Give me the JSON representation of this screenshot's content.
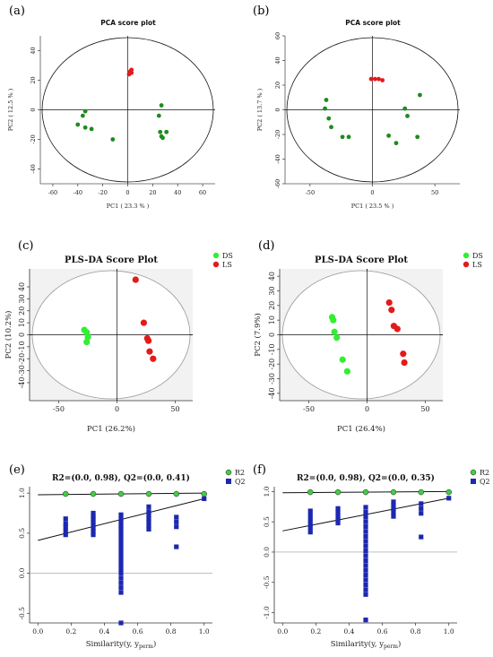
{
  "chart_data": [
    {
      "panel": "(a)",
      "type": "scatter",
      "title": "PCA score plot",
      "xlabel": "PC1 ( 23.3 % )",
      "ylabel": "PC2 ( 12.5 % )",
      "xlim": [
        -70,
        70
      ],
      "ylim": [
        -50,
        50
      ],
      "xticks": [
        -60,
        -40,
        -20,
        0,
        20,
        40,
        60
      ],
      "yticks": [
        -40,
        -20,
        0,
        20,
        40
      ],
      "ellipse": true,
      "series": [
        {
          "color": "#1f8a1f",
          "points": [
            [
              -40,
              -10
            ],
            [
              -36,
              -4
            ],
            [
              -34,
              -1
            ],
            [
              -34,
              -12
            ],
            [
              -29,
              -13
            ],
            [
              -12,
              -20
            ],
            [
              25,
              -4
            ],
            [
              27,
              3
            ],
            [
              26,
              -15
            ],
            [
              28,
              -19
            ],
            [
              31,
              -15
            ],
            [
              27,
              -18
            ]
          ]
        },
        {
          "color": "#e41a1a",
          "points": [
            [
              1,
              24
            ],
            [
              2,
              26
            ],
            [
              3,
              27
            ],
            [
              3,
              25
            ]
          ]
        }
      ]
    },
    {
      "panel": "(b)",
      "type": "scatter",
      "title": "PCA score plot",
      "xlabel": "PC1 ( 23.5 % )",
      "ylabel": "PC2 ( 13.7 % )",
      "xlim": [
        -70,
        70
      ],
      "ylim": [
        -60,
        60
      ],
      "xticks": [
        -50,
        0,
        50
      ],
      "yticks": [
        -60,
        -40,
        -20,
        0,
        20,
        40,
        60
      ],
      "ellipse": true,
      "series": [
        {
          "color": "#1f8a1f",
          "points": [
            [
              -37,
              8
            ],
            [
              -38,
              1
            ],
            [
              -35,
              -7
            ],
            [
              -33,
              -14
            ],
            [
              -24,
              -22
            ],
            [
              -19,
              -22
            ],
            [
              13,
              -21
            ],
            [
              19,
              -27
            ],
            [
              26,
              1
            ],
            [
              28,
              -5
            ],
            [
              38,
              12
            ],
            [
              36,
              -22
            ]
          ]
        },
        {
          "color": "#e41a1a",
          "points": [
            [
              -1,
              25
            ],
            [
              2,
              25
            ],
            [
              5,
              25
            ],
            [
              8,
              24
            ]
          ]
        }
      ]
    },
    {
      "panel": "(c)",
      "type": "scatter",
      "title": "PLS-DA Score Plot",
      "xlabel": "PC1 (26.2%)",
      "ylabel": "PC2 (10.2%)",
      "xlim": [
        -75,
        65
      ],
      "ylim": [
        -55,
        55
      ],
      "xticks": [
        -50,
        0,
        50
      ],
      "yticks": [
        -40,
        -30,
        -20,
        -10,
        0,
        10,
        20,
        30,
        40
      ],
      "legend": {
        "position": "top-right",
        "entries": [
          {
            "name": "DS",
            "color": "#33ee33"
          },
          {
            "name": "LS",
            "color": "#e41a1a"
          }
        ]
      },
      "series": [
        {
          "name": "DS",
          "color": "#33ee33",
          "points": [
            [
              -28,
              4
            ],
            [
              -26,
              2
            ],
            [
              -25,
              -2
            ],
            [
              -26,
              -6
            ]
          ]
        },
        {
          "name": "LS",
          "color": "#e41a1a",
          "points": [
            [
              16,
              46
            ],
            [
              23,
              10
            ],
            [
              26,
              -3
            ],
            [
              27,
              -5
            ],
            [
              28,
              -14
            ],
            [
              31,
              -20
            ]
          ]
        }
      ]
    },
    {
      "panel": "(d)",
      "type": "scatter",
      "title": "PLS-DA Score Plot",
      "xlabel": "PC1 (26.4%)",
      "ylabel": "PC2 (7.9%)",
      "xlim": [
        -75,
        65
      ],
      "ylim": [
        -45,
        45
      ],
      "xticks": [
        -50,
        0,
        50
      ],
      "yticks": [
        -40,
        -30,
        -20,
        -10,
        0,
        10,
        20,
        30,
        40
      ],
      "legend": {
        "position": "top-right",
        "entries": [
          {
            "name": "DS",
            "color": "#33ee33"
          },
          {
            "name": "LS",
            "color": "#e41a1a"
          }
        ]
      },
      "series": [
        {
          "name": "DS",
          "color": "#33ee33",
          "points": [
            [
              -30,
              12
            ],
            [
              -29,
              10
            ],
            [
              -28,
              2
            ],
            [
              -26,
              -2
            ],
            [
              -21,
              -17
            ],
            [
              -17,
              -25
            ]
          ]
        },
        {
          "name": "LS",
          "color": "#e41a1a",
          "points": [
            [
              19,
              22
            ],
            [
              21,
              17
            ],
            [
              23,
              6
            ],
            [
              26,
              4
            ],
            [
              31,
              -13
            ],
            [
              32,
              -19
            ]
          ]
        }
      ]
    },
    {
      "panel": "(e)",
      "type": "scatter",
      "title": "R2=(0.0, 0.98), Q2=(0.0, 0.41)",
      "xlabel": "Similarity(y, y",
      "xlabel_sub": "perm",
      "xlabel_end": ")",
      "xlim": [
        -0.05,
        1.05
      ],
      "ylim": [
        -0.62,
        1.08
      ],
      "xticks": [
        0.0,
        0.2,
        0.4,
        0.6,
        0.8,
        1.0
      ],
      "yticks": [
        -0.5,
        0.0,
        0.5,
        1.0
      ],
      "legend": {
        "position": "top-right",
        "entries": [
          {
            "name": "R2",
            "color": "#44cc44"
          },
          {
            "name": "Q2",
            "color": "#1c28b0"
          }
        ]
      },
      "lines": [
        {
          "name": "R2",
          "x": [
            0,
            1
          ],
          "y": [
            0.98,
            1.0
          ]
        },
        {
          "name": "Q2",
          "x": [
            0,
            1
          ],
          "y": [
            0.41,
            0.93
          ]
        }
      ],
      "series": [
        {
          "name": "R2",
          "shape": "circle",
          "color": "#44cc44",
          "points": [
            [
              0.167,
              0.99
            ],
            [
              0.333,
              0.99
            ],
            [
              0.5,
              0.99
            ],
            [
              0.667,
              0.99
            ],
            [
              0.833,
              0.99
            ],
            [
              1.0,
              0.99
            ]
          ]
        },
        {
          "name": "Q2",
          "shape": "square",
          "color": "#1c28b0",
          "points": [
            [
              0.167,
              0.68
            ],
            [
              0.167,
              0.62
            ],
            [
              0.167,
              0.58
            ],
            [
              0.167,
              0.53
            ],
            [
              0.167,
              0.48
            ],
            [
              0.333,
              0.75
            ],
            [
              0.333,
              0.71
            ],
            [
              0.333,
              0.68
            ],
            [
              0.333,
              0.64
            ],
            [
              0.333,
              0.6
            ],
            [
              0.333,
              0.56
            ],
            [
              0.333,
              0.52
            ],
            [
              0.333,
              0.48
            ],
            [
              0.5,
              0.73
            ],
            [
              0.5,
              0.68
            ],
            [
              0.5,
              0.64
            ],
            [
              0.5,
              0.59
            ],
            [
              0.5,
              0.55
            ],
            [
              0.5,
              0.5
            ],
            [
              0.5,
              0.45
            ],
            [
              0.5,
              0.4
            ],
            [
              0.5,
              0.35
            ],
            [
              0.5,
              0.3
            ],
            [
              0.5,
              0.25
            ],
            [
              0.5,
              0.2
            ],
            [
              0.5,
              0.15
            ],
            [
              0.5,
              0.1
            ],
            [
              0.5,
              0.05
            ],
            [
              0.5,
              0.0
            ],
            [
              0.5,
              -0.06
            ],
            [
              0.5,
              -0.12
            ],
            [
              0.5,
              -0.18
            ],
            [
              0.5,
              -0.24
            ],
            [
              0.5,
              -0.62
            ],
            [
              0.667,
              0.83
            ],
            [
              0.667,
              0.77
            ],
            [
              0.667,
              0.73
            ],
            [
              0.667,
              0.68
            ],
            [
              0.667,
              0.64
            ],
            [
              0.667,
              0.59
            ],
            [
              0.667,
              0.55
            ],
            [
              0.833,
              0.7
            ],
            [
              0.833,
              0.64
            ],
            [
              0.833,
              0.58
            ],
            [
              0.833,
              0.33
            ],
            [
              1.0,
              0.93
            ]
          ]
        }
      ]
    },
    {
      "panel": "(f)",
      "type": "scatter",
      "title": "R2=(0.0, 0.98), Q2=(0.0, 0.35)",
      "xlabel": "Similarity(y, y",
      "xlabel_sub": "perm",
      "xlabel_end": ")",
      "xlim": [
        -0.05,
        1.05
      ],
      "ylim": [
        -1.17,
        1.08
      ],
      "xticks": [
        0.0,
        0.2,
        0.4,
        0.6,
        0.8,
        1.0
      ],
      "yticks": [
        -1.0,
        -0.5,
        0.0,
        0.5,
        1.0
      ],
      "legend": {
        "position": "top-right",
        "entries": [
          {
            "name": "R2",
            "color": "#44cc44"
          },
          {
            "name": "Q2",
            "color": "#1c28b0"
          }
        ]
      },
      "lines": [
        {
          "name": "R2",
          "x": [
            0,
            1
          ],
          "y": [
            0.98,
            1.0
          ]
        },
        {
          "name": "Q2",
          "x": [
            0,
            1
          ],
          "y": [
            0.35,
            0.89
          ]
        }
      ],
      "series": [
        {
          "name": "R2",
          "shape": "circle",
          "color": "#44cc44",
          "points": [
            [
              0.167,
              0.99
            ],
            [
              0.333,
              0.99
            ],
            [
              0.5,
              0.99
            ],
            [
              0.667,
              0.99
            ],
            [
              0.833,
              0.99
            ],
            [
              1.0,
              0.99
            ]
          ]
        },
        {
          "name": "Q2",
          "shape": "square",
          "color": "#1c28b0",
          "points": [
            [
              0.167,
              0.68
            ],
            [
              0.167,
              0.61
            ],
            [
              0.167,
              0.54
            ],
            [
              0.167,
              0.47
            ],
            [
              0.167,
              0.4
            ],
            [
              0.167,
              0.33
            ],
            [
              0.333,
              0.72
            ],
            [
              0.333,
              0.66
            ],
            [
              0.333,
              0.6
            ],
            [
              0.333,
              0.54
            ],
            [
              0.333,
              0.48
            ],
            [
              0.5,
              0.74
            ],
            [
              0.5,
              0.66
            ],
            [
              0.5,
              0.58
            ],
            [
              0.5,
              0.5
            ],
            [
              0.5,
              0.42
            ],
            [
              0.5,
              0.34
            ],
            [
              0.5,
              0.26
            ],
            [
              0.5,
              0.18
            ],
            [
              0.5,
              0.1
            ],
            [
              0.5,
              0.02
            ],
            [
              0.5,
              -0.06
            ],
            [
              0.5,
              -0.14
            ],
            [
              0.5,
              -0.22
            ],
            [
              0.5,
              -0.3
            ],
            [
              0.5,
              -0.38
            ],
            [
              0.5,
              -0.46
            ],
            [
              0.5,
              -0.54
            ],
            [
              0.5,
              -0.62
            ],
            [
              0.5,
              -0.7
            ],
            [
              0.5,
              -1.12
            ],
            [
              0.667,
              0.83
            ],
            [
              0.667,
              0.77
            ],
            [
              0.667,
              0.71
            ],
            [
              0.667,
              0.65
            ],
            [
              0.667,
              0.59
            ],
            [
              0.833,
              0.8
            ],
            [
              0.833,
              0.72
            ],
            [
              0.833,
              0.64
            ],
            [
              0.833,
              0.25
            ],
            [
              1.0,
              0.89
            ]
          ]
        }
      ]
    }
  ]
}
